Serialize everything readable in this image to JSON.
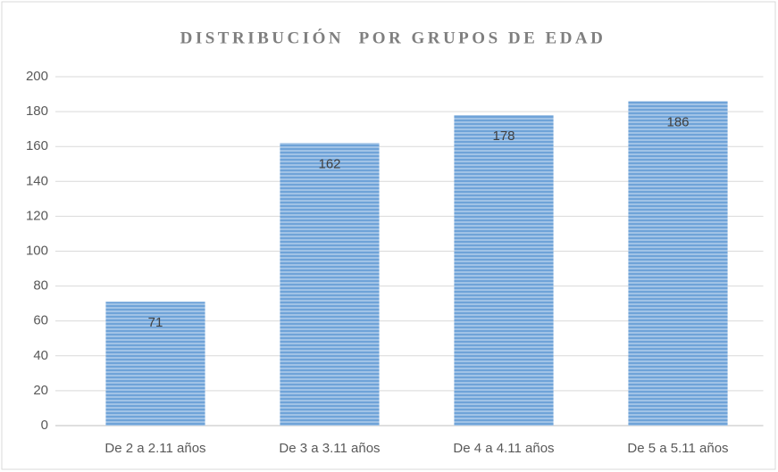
{
  "chart_data": {
    "type": "bar",
    "title": "DISTRIBUCIÓN  POR GRUPOS DE EDAD",
    "categories": [
      "De 2 a 2.11 años",
      "De 3 a 3.11 años",
      "De 4 a 4.11 años",
      "De 5 a 5.11 años"
    ],
    "values": [
      71,
      162,
      178,
      186
    ],
    "color": "#6fa3d8",
    "ylim": [
      0,
      200
    ],
    "yticks": [
      0,
      20,
      40,
      60,
      80,
      100,
      120,
      140,
      160,
      180,
      200
    ],
    "grid": true
  }
}
